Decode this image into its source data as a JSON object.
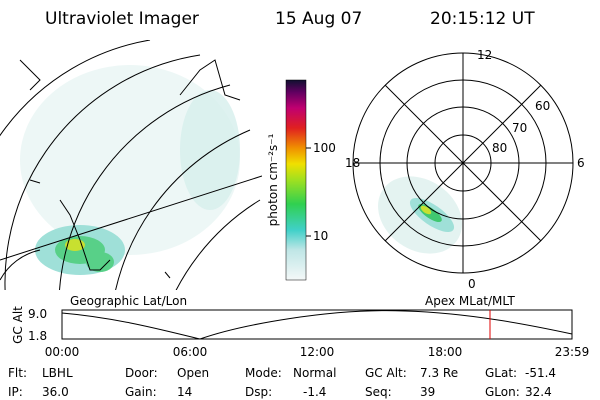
{
  "header": {
    "title": "Ultraviolet Imager",
    "date": "15 Aug 07",
    "time": "20:15:12 UT"
  },
  "colorbar": {
    "label": "photon cm⁻²s⁻¹",
    "ticks": [
      "100",
      "10"
    ]
  },
  "polar": {
    "mlt_labels": [
      "12",
      "18",
      "6",
      "0"
    ],
    "mlat_labels": [
      "60",
      "70",
      "80"
    ]
  },
  "altitude": {
    "ylabel": "GC Alt",
    "yticks": [
      "9.0",
      "1.8"
    ],
    "xticks": [
      "00:00",
      "06:00",
      "12:00",
      "18:00",
      "23:59"
    ],
    "left_caption": "Geographic Lat/Lon",
    "right_caption": "Apex MLat/MLT"
  },
  "status": [
    [
      {
        "label": "Flt:",
        "value": "LBHL"
      },
      {
        "label": "IP:",
        "value": "36.0"
      }
    ],
    [
      {
        "label": "Door:",
        "value": "Open"
      },
      {
        "label": "Gain:",
        "value": "14"
      }
    ],
    [
      {
        "label": "Mode:",
        "value": "Normal"
      },
      {
        "label": "Dsp:",
        "value": "-1.4"
      }
    ],
    [
      {
        "label": "GC Alt:",
        "value": "7.3 Re"
      },
      {
        "label": "Seq:",
        "value": "39"
      }
    ],
    [
      {
        "label": "GLat:",
        "value": "-51.4"
      },
      {
        "label": "GLon:",
        "value": "32.4"
      }
    ]
  ]
}
